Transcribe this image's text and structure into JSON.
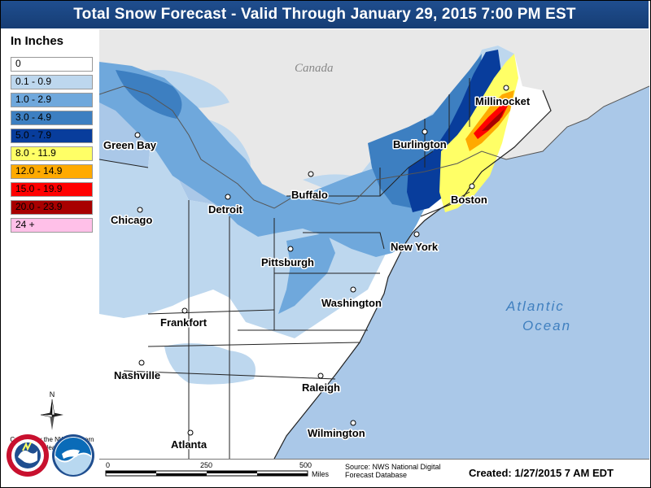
{
  "title": "Total Snow Forecast - Valid Through January 29, 2015 7:00 PM EST",
  "legend": {
    "title": "In Inches",
    "items": [
      {
        "label": "0",
        "color": "#ffffff"
      },
      {
        "label": "0.1 - 0.9",
        "color": "#bdd7ee"
      },
      {
        "label": "1.0 - 2.9",
        "color": "#6fa8dc"
      },
      {
        "label": "3.0 - 4.9",
        "color": "#3d7fc1"
      },
      {
        "label": "5.0 - 7.9",
        "color": "#083d9c"
      },
      {
        "label": "8.0 - 11.9",
        "color": "#ffff66"
      },
      {
        "label": "12.0 - 14.9",
        "color": "#ffaa00"
      },
      {
        "label": "15.0 - 19.9",
        "color": "#ff0000"
      },
      {
        "label": "20.0 - 23.9",
        "color": "#a80000"
      },
      {
        "label": "24 +",
        "color": "#ffc0e8"
      }
    ]
  },
  "compass_label": "N",
  "credit": "Created by the NWS Eastern Region Headquarters",
  "cities": [
    {
      "name": "Green Bay"
    },
    {
      "name": "Chicago"
    },
    {
      "name": "Detroit"
    },
    {
      "name": "Buffalo"
    },
    {
      "name": "Burlington"
    },
    {
      "name": "Millinocket"
    },
    {
      "name": "Boston"
    },
    {
      "name": "New York"
    },
    {
      "name": "Pittsburgh"
    },
    {
      "name": "Washington"
    },
    {
      "name": "Frankfort"
    },
    {
      "name": "Nashville"
    },
    {
      "name": "Raleigh"
    },
    {
      "name": "Atlanta"
    },
    {
      "name": "Wilmington"
    }
  ],
  "labels": {
    "country": "Canada",
    "ocean_line1": "Atlantic",
    "ocean_line2": "Ocean"
  },
  "scale": {
    "ticks": [
      "0",
      "250",
      "500"
    ],
    "unit": "Miles"
  },
  "source": "Source: NWS National Digital Forecast Database",
  "created": "Created: 1/27/2015 7 AM EDT"
}
